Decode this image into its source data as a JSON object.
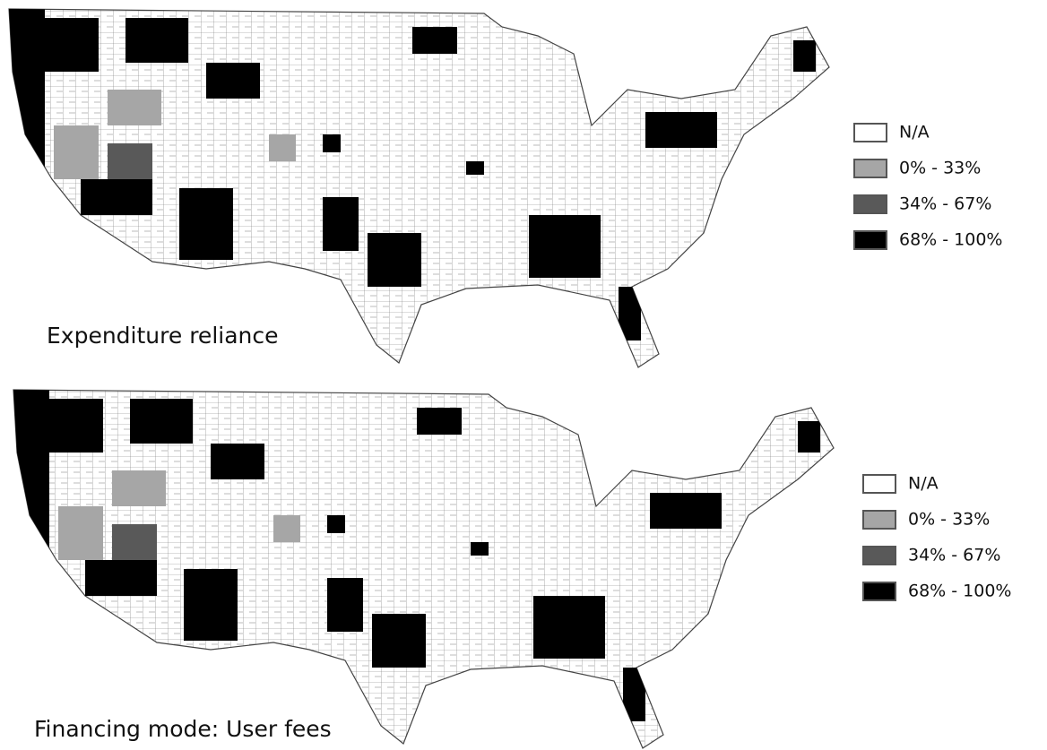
{
  "maps": [
    {
      "title": "Expenditure reliance",
      "legend": [
        {
          "label": "N/A",
          "color": "#ffffff"
        },
        {
          "label": "0% - 33%",
          "color": "#a6a6a6"
        },
        {
          "label": "34% - 67%",
          "color": "#595959"
        },
        {
          "label": "68% - 100%",
          "color": "#000000"
        }
      ]
    },
    {
      "title": "Financing mode: User fees",
      "legend": [
        {
          "label": "N/A",
          "color": "#ffffff"
        },
        {
          "label": "0% - 33%",
          "color": "#a6a6a6"
        },
        {
          "label": "34% - 67%",
          "color": "#595959"
        },
        {
          "label": "68% - 100%",
          "color": "#000000"
        }
      ]
    }
  ]
}
